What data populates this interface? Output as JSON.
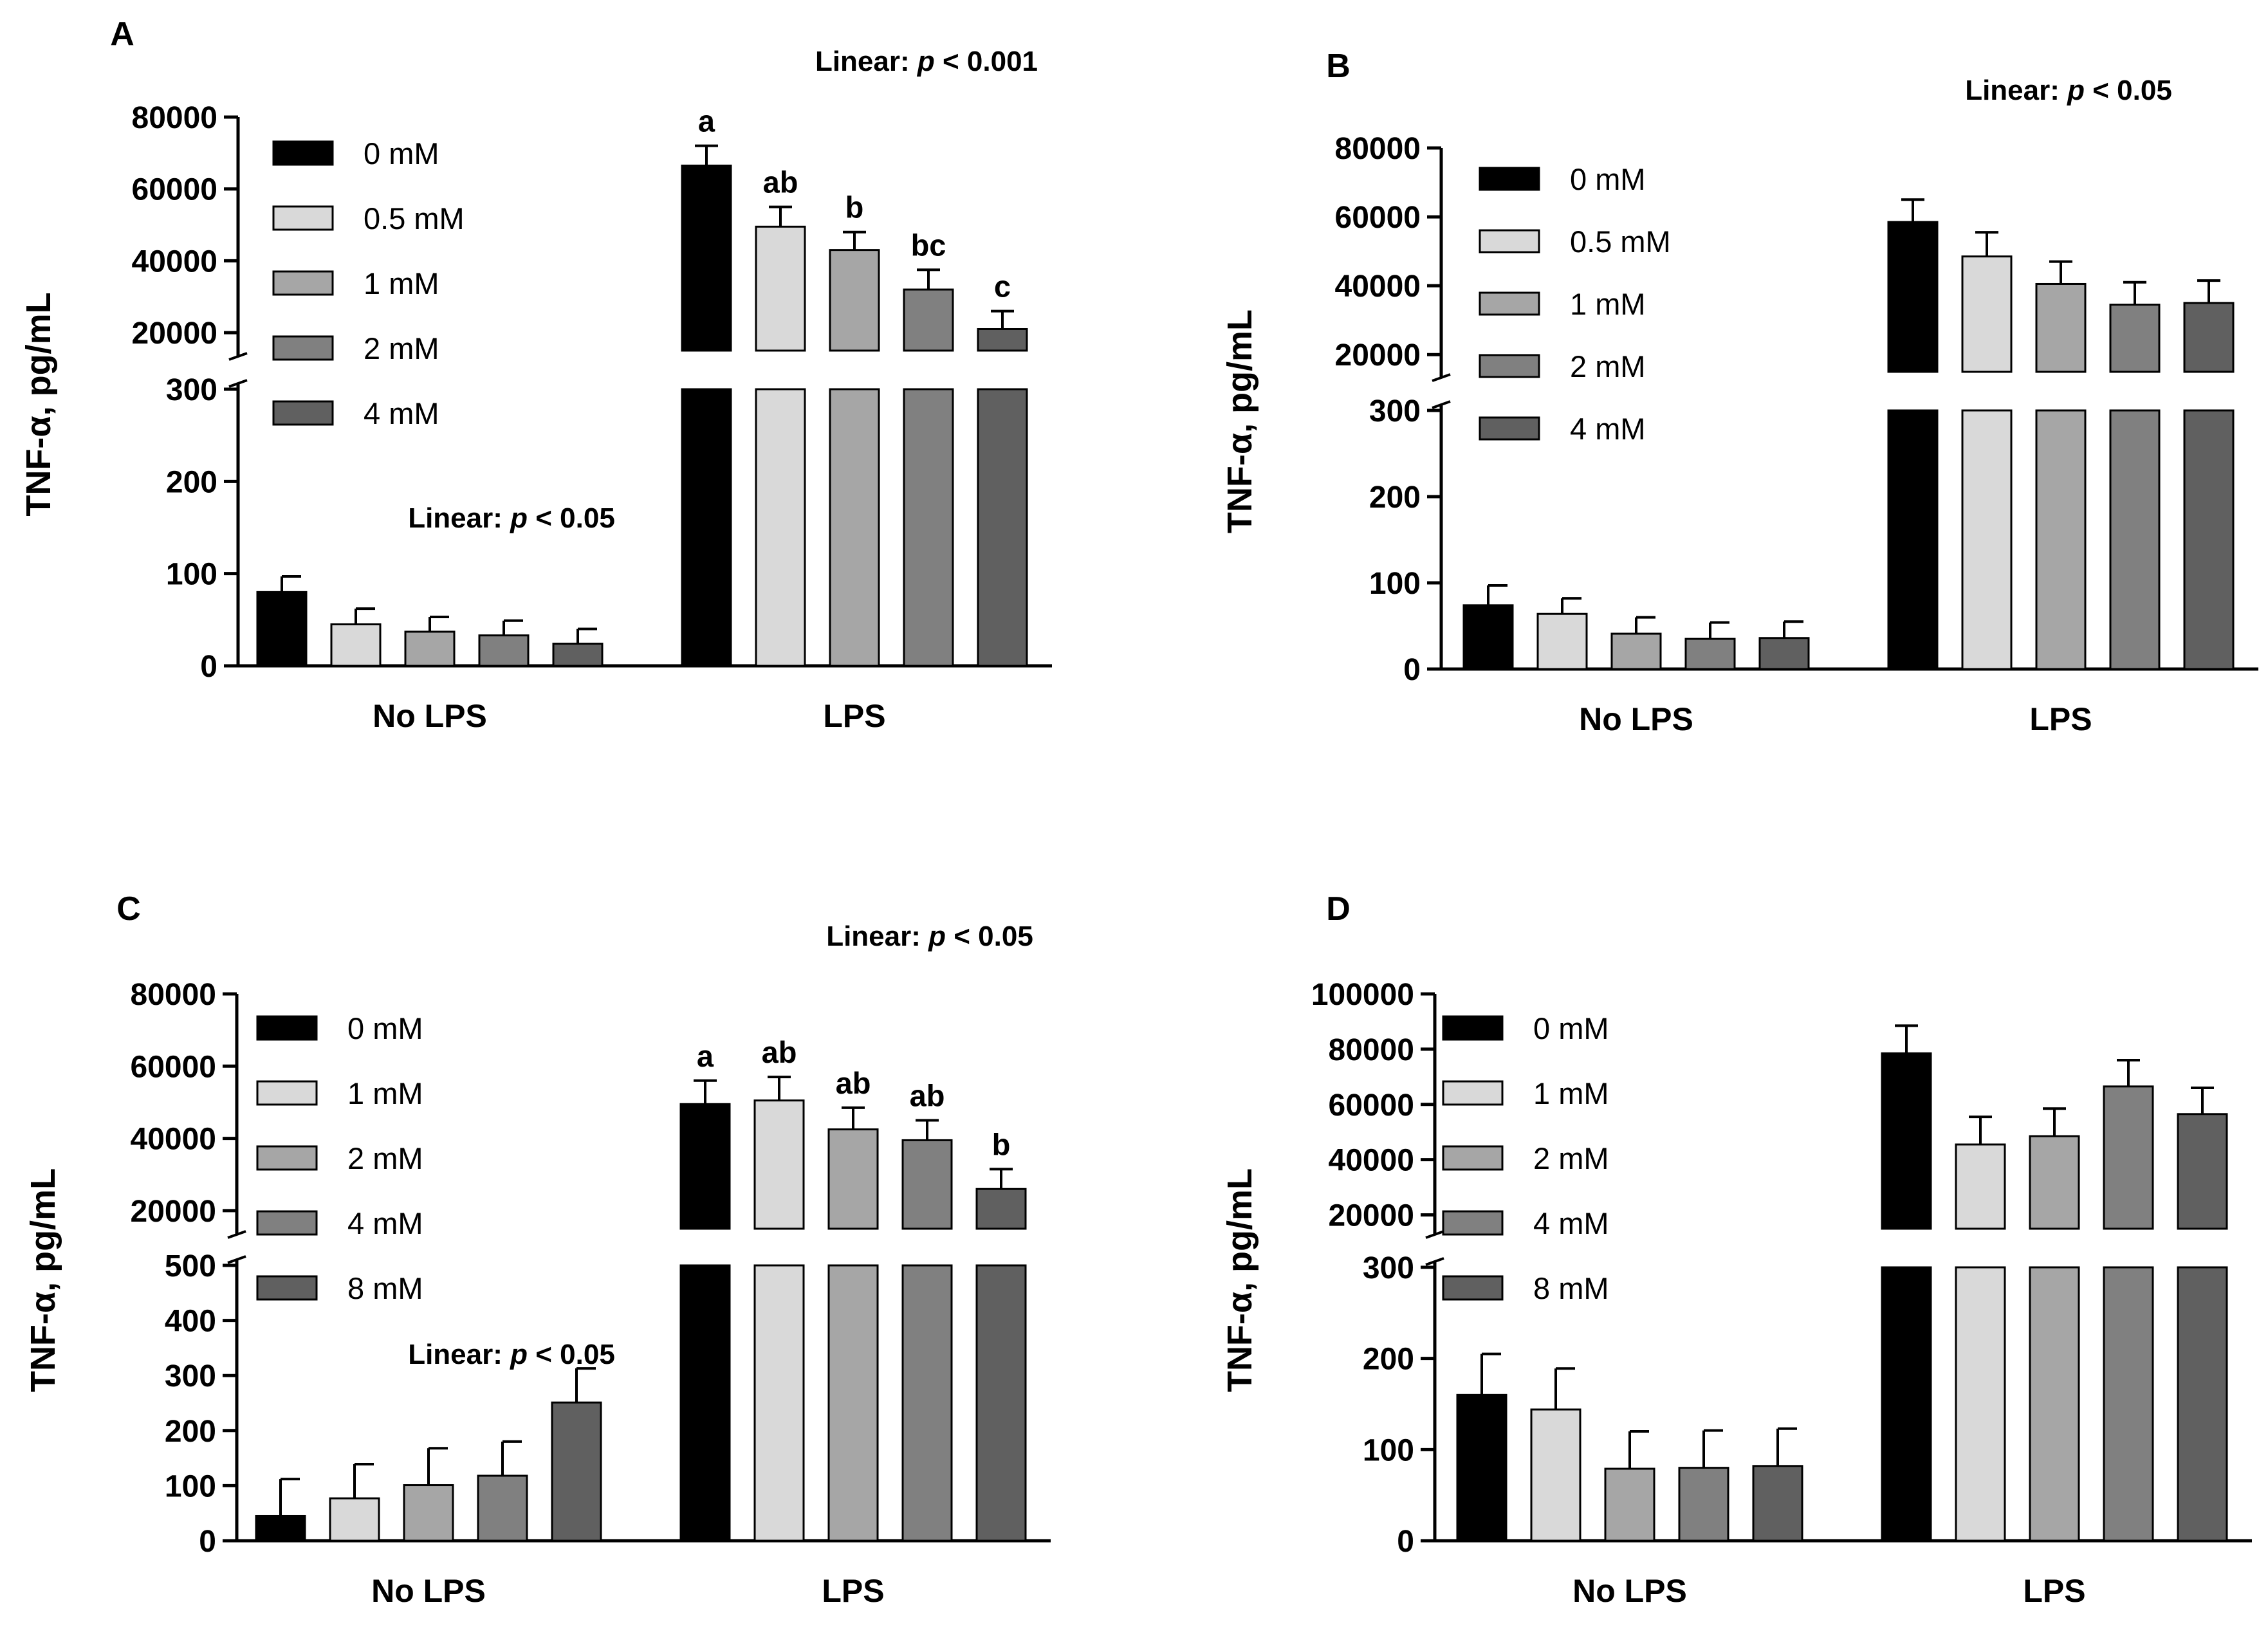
{
  "chart_data": [
    {
      "type": "bar",
      "panel": "A",
      "ylabel": "TNF-α, pg/mL",
      "groups": [
        "No LPS",
        "LPS"
      ],
      "legend": [
        "0 mM",
        "0.5 mM",
        "1 mM",
        "2 mM",
        "4 mM"
      ],
      "colors": [
        "#000000",
        "#d9d9d9",
        "#a6a6a6",
        "#808080",
        "#606060"
      ],
      "axis_break": true,
      "lower_axis": {
        "ylim": [
          0,
          300
        ],
        "ticks": [
          0,
          100,
          200,
          300
        ]
      },
      "upper_axis": {
        "ylim": [
          15000,
          80000
        ],
        "ticks": [
          20000,
          40000,
          60000,
          80000
        ]
      },
      "series": [
        {
          "name": "0 mM",
          "values": [
            80,
            66500
          ],
          "errors": [
            17,
            5500
          ]
        },
        {
          "name": "0.5 mM",
          "values": [
            45,
            49500
          ],
          "errors": [
            17,
            5500
          ]
        },
        {
          "name": "1 mM",
          "values": [
            37,
            43000
          ],
          "errors": [
            16,
            5000
          ]
        },
        {
          "name": "2 mM",
          "values": [
            33,
            32000
          ],
          "errors": [
            16,
            5500
          ]
        },
        {
          "name": "4 mM",
          "values": [
            24,
            21000
          ],
          "errors": [
            16,
            5000
          ]
        }
      ],
      "significance_letters": [
        [
          "",
          "",
          "",
          "",
          ""
        ],
        [
          "a",
          "ab",
          "b",
          "bc",
          "c"
        ]
      ],
      "annotations": [
        {
          "group": "LPS",
          "prefix": "Linear: ",
          "p": "p",
          "suffix": " < 0.001"
        },
        {
          "group": "No LPS",
          "prefix": "Linear: ",
          "p": "p",
          "suffix": " < 0.05"
        }
      ]
    },
    {
      "type": "bar",
      "panel": "B",
      "ylabel": "TNF-α, pg/mL",
      "groups": [
        "No LPS",
        "LPS"
      ],
      "legend": [
        "0 mM",
        "0.5 mM",
        "1 mM",
        "2 mM",
        "4 mM"
      ],
      "colors": [
        "#000000",
        "#d9d9d9",
        "#a6a6a6",
        "#808080",
        "#606060"
      ],
      "axis_break": true,
      "lower_axis": {
        "ylim": [
          0,
          300
        ],
        "ticks": [
          0,
          100,
          200,
          300
        ]
      },
      "upper_axis": {
        "ylim": [
          15000,
          80000
        ],
        "ticks": [
          20000,
          40000,
          60000,
          80000
        ]
      },
      "series": [
        {
          "name": "0 mM",
          "values": [
            74,
            58500
          ],
          "errors": [
            23,
            6500
          ]
        },
        {
          "name": "0.5 mM",
          "values": [
            64,
            48500
          ],
          "errors": [
            18,
            7000
          ]
        },
        {
          "name": "1 mM",
          "values": [
            41,
            40500
          ],
          "errors": [
            19,
            6500
          ]
        },
        {
          "name": "2 mM",
          "values": [
            35,
            34500
          ],
          "errors": [
            19,
            6500
          ]
        },
        {
          "name": "4 mM",
          "values": [
            36,
            35000
          ],
          "errors": [
            19,
            6500
          ]
        }
      ],
      "significance_letters": [
        [
          "",
          "",
          "",
          "",
          ""
        ],
        [
          "",
          "",
          "",
          "",
          ""
        ]
      ],
      "annotations": [
        {
          "group": "LPS",
          "prefix": "Linear: ",
          "p": "p",
          "suffix": " < 0.05"
        }
      ]
    },
    {
      "type": "bar",
      "panel": "C",
      "ylabel": "TNF-α, pg/mL",
      "groups": [
        "No LPS",
        "LPS"
      ],
      "legend": [
        "0 mM",
        "1 mM",
        "2 mM",
        "4 mM",
        "8 mM"
      ],
      "colors": [
        "#000000",
        "#d9d9d9",
        "#a6a6a6",
        "#808080",
        "#606060"
      ],
      "axis_break": true,
      "lower_axis": {
        "ylim": [
          0,
          500
        ],
        "ticks": [
          0,
          100,
          200,
          300,
          400,
          500
        ]
      },
      "upper_axis": {
        "ylim": [
          15000,
          80000
        ],
        "ticks": [
          20000,
          40000,
          60000,
          80000
        ]
      },
      "series": [
        {
          "name": "0 mM",
          "values": [
            45,
            49500
          ],
          "errors": [
            67,
            6500
          ]
        },
        {
          "name": "1 mM",
          "values": [
            77,
            50500
          ],
          "errors": [
            62,
            6500
          ]
        },
        {
          "name": "2 mM",
          "values": [
            101,
            42500
          ],
          "errors": [
            67,
            6000
          ]
        },
        {
          "name": "4 mM",
          "values": [
            118,
            39500
          ],
          "errors": [
            62,
            5500
          ]
        },
        {
          "name": "8 mM",
          "values": [
            251,
            26000
          ],
          "errors": [
            62,
            5500
          ]
        }
      ],
      "significance_letters": [
        [
          "",
          "",
          "",
          "",
          ""
        ],
        [
          "a",
          "ab",
          "ab",
          "ab",
          "b"
        ]
      ],
      "annotations": [
        {
          "group": "LPS",
          "prefix": "Linear: ",
          "p": "p",
          "suffix": " < 0.05"
        },
        {
          "group": "No LPS",
          "prefix": "Linear: ",
          "p": "p",
          "suffix": " < 0.05"
        }
      ]
    },
    {
      "type": "bar",
      "panel": "D",
      "ylabel": "TNF-α, pg/mL",
      "groups": [
        "No LPS",
        "LPS"
      ],
      "legend": [
        "0 mM",
        "1 mM",
        "2 mM",
        "4 mM",
        "8 mM"
      ],
      "colors": [
        "#000000",
        "#d9d9d9",
        "#a6a6a6",
        "#808080",
        "#606060"
      ],
      "axis_break": true,
      "lower_axis": {
        "ylim": [
          0,
          300
        ],
        "ticks": [
          0,
          100,
          200,
          300
        ]
      },
      "upper_axis": {
        "ylim": [
          15000,
          100000
        ],
        "ticks": [
          20000,
          40000,
          60000,
          80000,
          100000
        ]
      },
      "series": [
        {
          "name": "0 mM",
          "values": [
            160,
            78500
          ],
          "errors": [
            45,
            10000
          ]
        },
        {
          "name": "1 mM",
          "values": [
            144,
            45500
          ],
          "errors": [
            45,
            10000
          ]
        },
        {
          "name": "2 mM",
          "values": [
            79,
            48500
          ],
          "errors": [
            41,
            10000
          ]
        },
        {
          "name": "4 mM",
          "values": [
            80,
            66500
          ],
          "errors": [
            41,
            9500
          ]
        },
        {
          "name": "8 mM",
          "values": [
            82,
            56500
          ],
          "errors": [
            41,
            9500
          ]
        }
      ],
      "significance_letters": [
        [
          "",
          "",
          "",
          "",
          ""
        ],
        [
          "",
          "",
          "",
          "",
          ""
        ]
      ],
      "annotations": []
    }
  ]
}
